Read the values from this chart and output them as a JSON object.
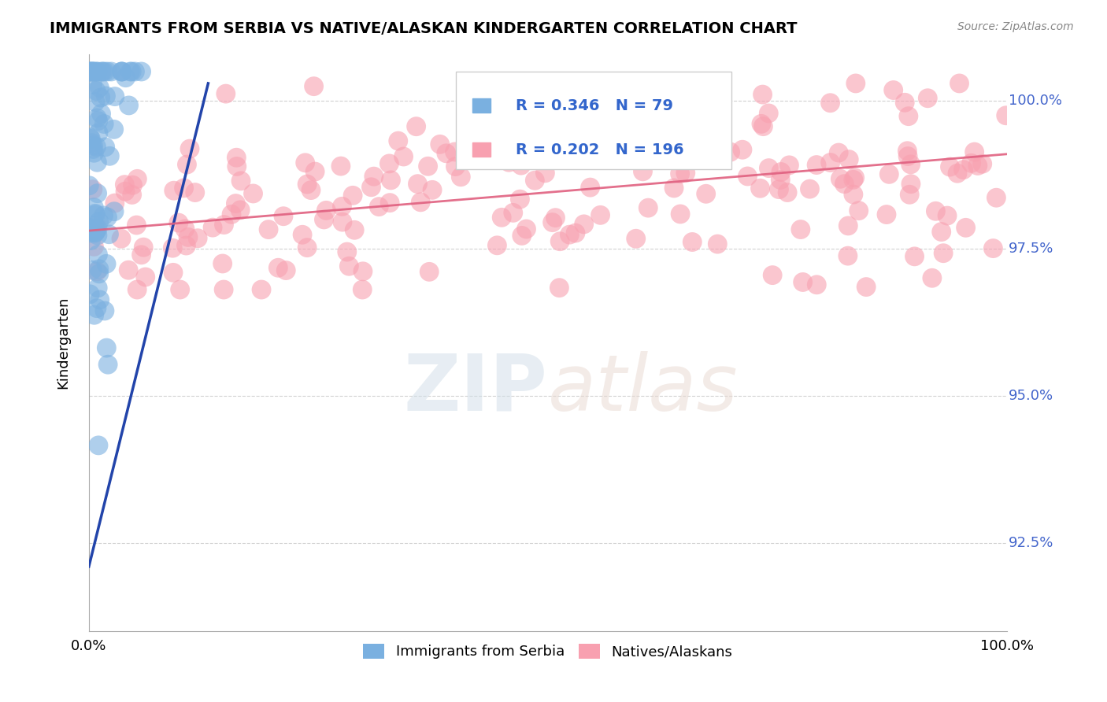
{
  "title": "IMMIGRANTS FROM SERBIA VS NATIVE/ALASKAN KINDERGARTEN CORRELATION CHART",
  "source": "Source: ZipAtlas.com",
  "xlabel": "",
  "ylabel": "Kindergarten",
  "xlim": [
    0.0,
    1.0
  ],
  "ylim": [
    0.91,
    1.008
  ],
  "yticks": [
    0.925,
    0.95,
    0.975,
    1.0
  ],
  "ytick_labels": [
    "92.5%",
    "95.0%",
    "97.5%",
    "100.0%"
  ],
  "xticks": [
    0.0,
    0.25,
    0.5,
    0.75,
    1.0
  ],
  "xtick_labels": [
    "0.0%",
    "",
    "",
    "",
    "100.0%"
  ],
  "serbia_R": 0.346,
  "serbia_N": 79,
  "native_R": 0.202,
  "native_N": 196,
  "serbia_color": "#7ab0e0",
  "native_color": "#f8a0b0",
  "serbia_line_color": "#2244aa",
  "native_line_color": "#e06080",
  "watermark_zip": "ZIP",
  "watermark_atlas": "atlas",
  "background_color": "#ffffff",
  "grid_color": "#cccccc",
  "tick_label_color": "#4466cc",
  "legend_color": "#3366cc"
}
